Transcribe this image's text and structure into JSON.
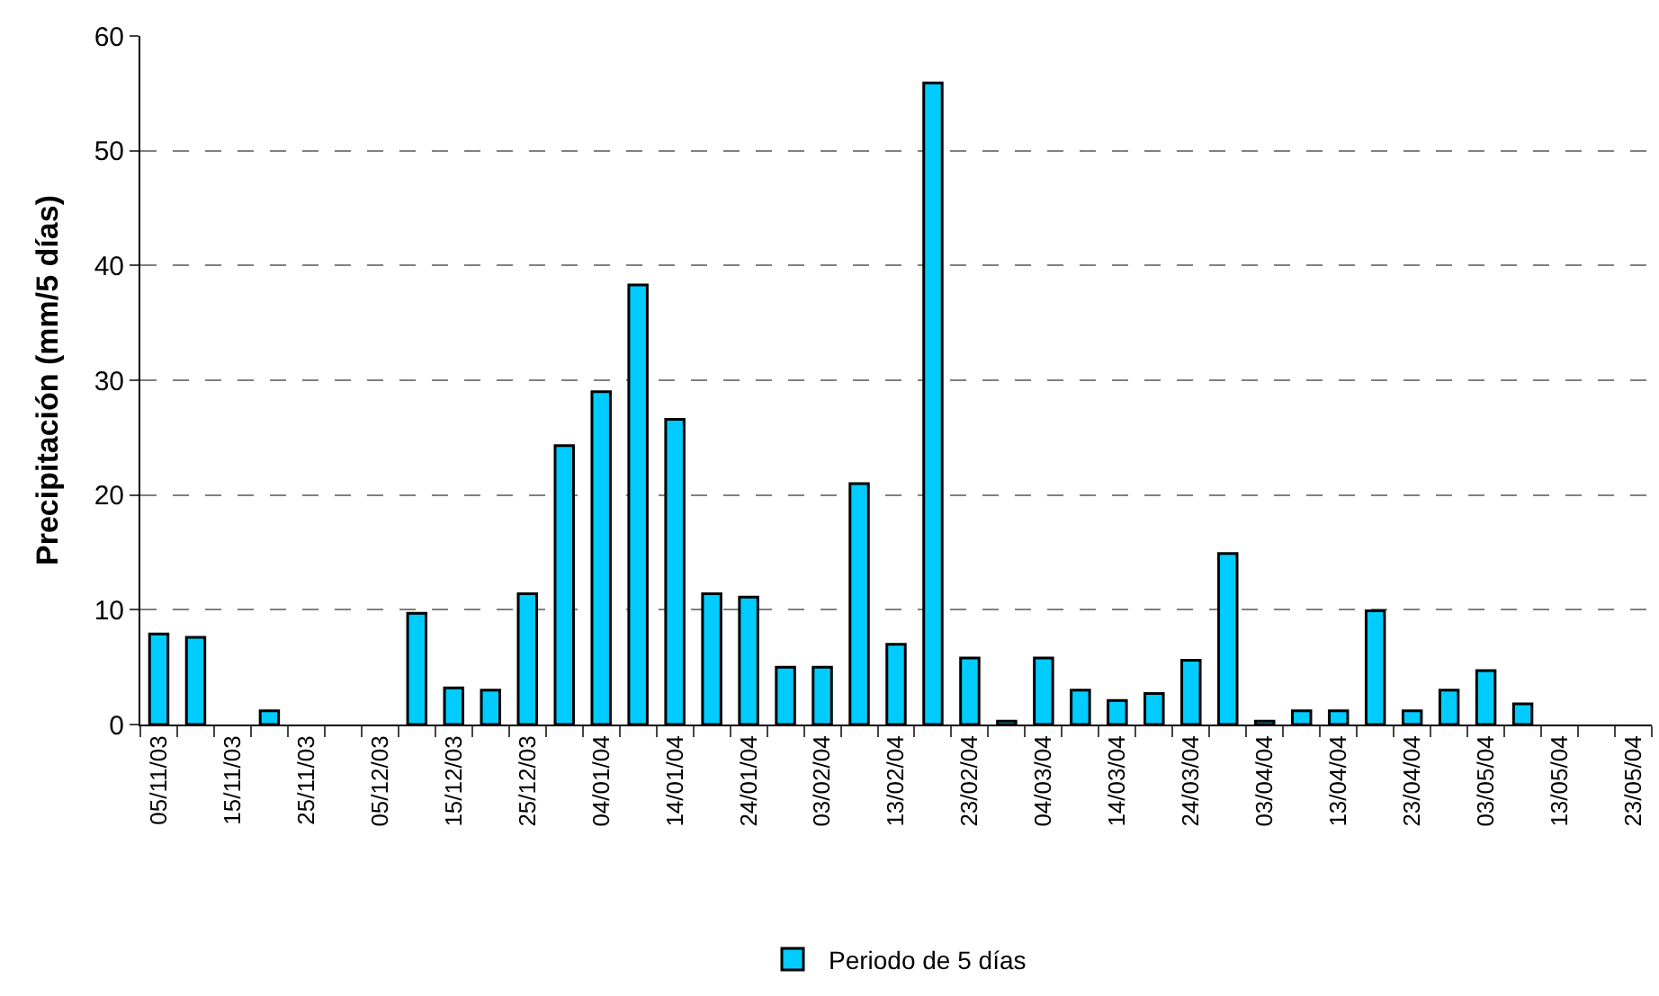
{
  "chart_data": {
    "type": "bar",
    "ylabel": "Precipitación (mm/5 días)",
    "categories": [
      "05/11/03",
      null,
      "15/11/03",
      null,
      "25/11/03",
      null,
      "05/12/03",
      null,
      "15/12/03",
      null,
      "25/12/03",
      null,
      "04/01/04",
      null,
      "14/01/04",
      null,
      "24/01/04",
      null,
      "03/02/04",
      null,
      "13/02/04",
      null,
      "23/02/04",
      null,
      "04/03/04",
      null,
      "14/03/04",
      null,
      "24/03/04",
      null,
      "03/04/04",
      null,
      "13/04/04",
      null,
      "23/04/04",
      null,
      "03/05/04",
      null,
      "13/05/04",
      null,
      "23/05/04"
    ],
    "series": [
      {
        "name": "Periodo de 5 días",
        "color": "#00ccff",
        "values": [
          7.9,
          7.6,
          0,
          1.2,
          0,
          0,
          0,
          9.7,
          3.2,
          3.0,
          11.4,
          24.3,
          29.0,
          38.3,
          26.6,
          11.4,
          11.1,
          5.0,
          5.0,
          21.0,
          7.0,
          55.9,
          5.8,
          0.3,
          5.8,
          3.0,
          2.1,
          2.7,
          5.6,
          14.9,
          0.3,
          1.2,
          1.2,
          9.9,
          1.2,
          3.0,
          4.7,
          1.8,
          0,
          0,
          0
        ]
      }
    ],
    "ylim": [
      0,
      60
    ],
    "yticks": [
      0,
      10,
      20,
      30,
      40,
      50,
      60
    ],
    "grid": "y",
    "legend": "bottom"
  }
}
